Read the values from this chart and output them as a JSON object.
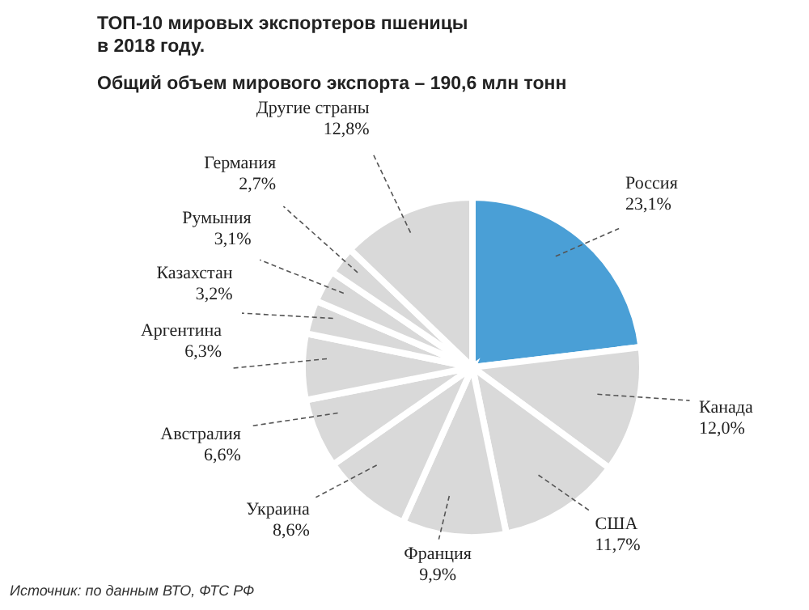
{
  "chart_data": {
    "type": "pie",
    "title": "ТОП-10 мировых экспортеров пшеницы\nв 2018 году.",
    "subtitle": "Общий объем мирового экспорта – 190,6 млн тонн",
    "categories": [
      "Россия",
      "Канада",
      "США",
      "Франция",
      "Украина",
      "Австралия",
      "Аргентина",
      "Казахстан",
      "Румыния",
      "Германия",
      "Другие страны"
    ],
    "values": [
      23.1,
      12.0,
      11.7,
      9.9,
      8.6,
      6.6,
      6.3,
      3.2,
      3.1,
      2.7,
      12.8
    ],
    "colors": [
      "#4a9fd6",
      "#d9d9d9",
      "#d9d9d9",
      "#d9d9d9",
      "#d9d9d9",
      "#d9d9d9",
      "#d9d9d9",
      "#d9d9d9",
      "#d9d9d9",
      "#d9d9d9",
      "#d9d9d9"
    ],
    "value_labels": [
      "23,1%",
      "12,0%",
      "11,7%",
      "9,9%",
      "8,6%",
      "6,6%",
      "6,3%",
      "3,2%",
      "3,1%",
      "2,7%",
      "12,8%"
    ],
    "annotations": [
      "Источник: по данным ВТО, ФТС РФ"
    ]
  }
}
